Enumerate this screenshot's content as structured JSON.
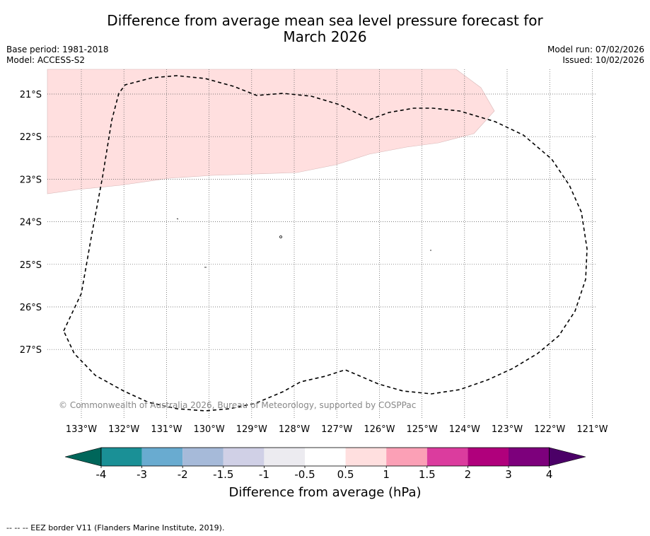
{
  "header": {
    "title_line1": "Difference from average mean sea level pressure forecast for",
    "title_line2": "March 2026",
    "base_period": "Base period: 1981-2018",
    "model": "Model: ACCESS-S2",
    "model_run": "Model run: 07/02/2026",
    "issued": "Issued: 10/02/2026"
  },
  "map": {
    "lat_labels": [
      "21°S",
      "22°S",
      "23°S",
      "24°S",
      "25°S",
      "26°S",
      "27°S"
    ],
    "lon_labels": [
      "133°W",
      "132°W",
      "131°W",
      "130°W",
      "129°W",
      "128°W",
      "127°W",
      "126°W",
      "125°W",
      "124°W",
      "123°W",
      "122°W",
      "121°W"
    ],
    "copyright": "© Commonwealth of Australia 2026, Bureau of Meteorology, supported by COSPPac",
    "anomaly_fill_color": "#ffdfdf",
    "eez_color": "#000000"
  },
  "colorbar": {
    "ticks": [
      "-4",
      "-3",
      "-2",
      "-1.5",
      "-1",
      "-0.5",
      "0.5",
      "1",
      "1.5",
      "2",
      "3",
      "4"
    ],
    "colors": [
      "#1a9096",
      "#69abd0",
      "#a6bad9",
      "#d0d0e6",
      "#ecebf0",
      "#ffffff",
      "#ffdfdf",
      "#fba0b6",
      "#db3c9e",
      "#b0007c",
      "#7d007c"
    ],
    "under_color": "#00665a",
    "over_color": "#4b0067",
    "label": "Difference from average (hPa)"
  },
  "legend": {
    "footnote": "--  --  -- EEZ border V11 (Flanders Marine Institute, 2019)."
  }
}
